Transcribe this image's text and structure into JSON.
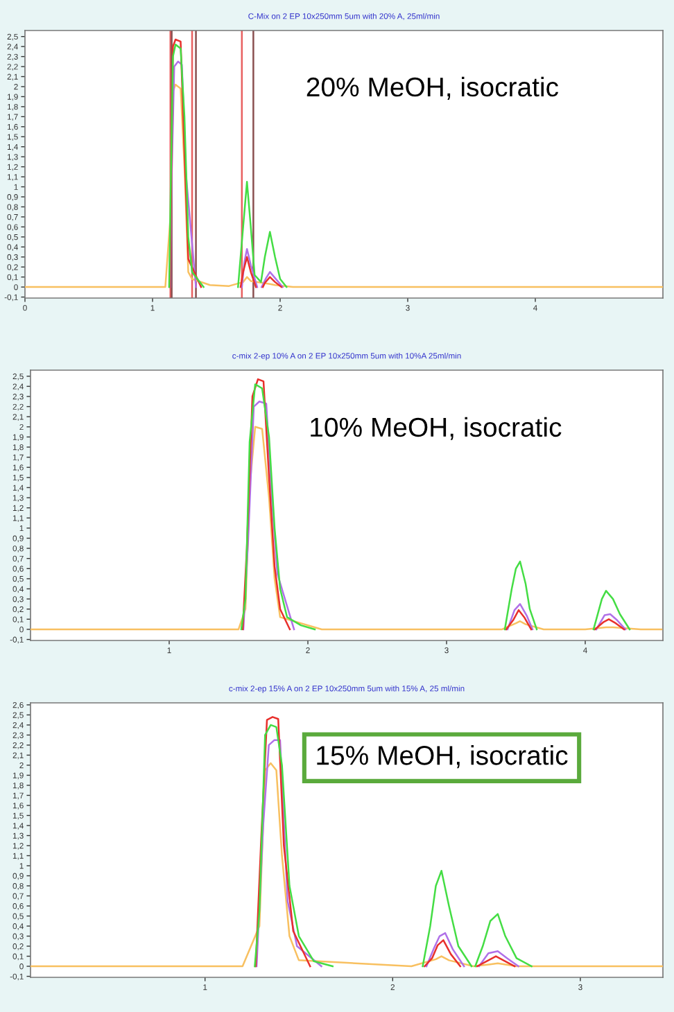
{
  "chart_data": [
    {
      "type": "line",
      "title": "C-Mix on 2 EP 10x250mm 5um with 20% A, 25ml/min",
      "annotations": [
        "20% MeOH, isocratic"
      ],
      "xlim": [
        0,
        5.0
      ],
      "xticks": [
        0,
        1,
        2,
        3,
        4
      ],
      "ylim": [
        -0.11,
        2.56
      ],
      "yticks": [
        {
          "value": -0.1,
          "label": "-0,1"
        },
        0,
        {
          "value": 0.1,
          "label": "0,1"
        },
        {
          "value": 0.2,
          "label": "0,2"
        },
        {
          "value": 0.3,
          "label": "0,3"
        },
        {
          "value": 0.4,
          "label": "0,4"
        },
        {
          "value": 0.5,
          "label": "0,5"
        },
        {
          "value": 0.6,
          "label": "0,6"
        },
        {
          "value": 0.7,
          "label": "0,7"
        },
        {
          "value": 0.8,
          "label": "0,8"
        },
        {
          "value": 0.9,
          "label": "0,9"
        },
        1,
        {
          "value": 1.1,
          "label": "1,1"
        },
        {
          "value": 1.2,
          "label": "1,2"
        },
        {
          "value": 1.3,
          "label": "1,3"
        },
        {
          "value": 1.4,
          "label": "1,4"
        },
        {
          "value": 1.5,
          "label": "1,5"
        },
        {
          "value": 1.6,
          "label": "1,6"
        },
        {
          "value": 1.7,
          "label": "1,7"
        },
        {
          "value": 1.8,
          "label": "1,8"
        },
        {
          "value": 1.9,
          "label": "1,9"
        },
        2,
        {
          "value": 2.1,
          "label": "2,1"
        },
        {
          "value": 2.2,
          "label": "2,2"
        },
        {
          "value": 2.3,
          "label": "2,3"
        },
        {
          "value": 2.4,
          "label": "2,4"
        },
        {
          "value": 2.5,
          "label": "2,5"
        }
      ],
      "grid": false,
      "legend": false,
      "marker": "none",
      "line_style": "solid",
      "ref_lines": [
        {
          "axis": "x",
          "value": 1.14,
          "color": "#e86060"
        },
        {
          "axis": "x",
          "value": 1.15,
          "color": "#8a5050"
        },
        {
          "axis": "x",
          "value": 1.31,
          "color": "#e86060"
        },
        {
          "axis": "x",
          "value": 1.34,
          "color": "#8a5050"
        },
        {
          "axis": "x",
          "value": 1.7,
          "color": "#e86060"
        },
        {
          "axis": "x",
          "value": 1.79,
          "color": "#8a5050"
        }
      ],
      "series": [
        {
          "color": "#f8c060",
          "x": [
            0,
            0.9,
            1.0,
            1.1,
            1.14,
            1.16,
            1.18,
            1.22,
            1.25,
            1.28,
            1.31,
            1.45,
            1.6,
            1.71,
            1.74,
            1.77,
            1.92,
            1.96,
            2.1,
            5.0
          ],
          "values": [
            0,
            0,
            0,
            0,
            0.7,
            1.95,
            2.02,
            1.98,
            1.2,
            0.15,
            0.08,
            0.02,
            0.01,
            0.05,
            0.1,
            0.06,
            0.03,
            0.02,
            0,
            0
          ]
        },
        {
          "color": "#b070e8",
          "x": [
            1.138,
            1.15,
            1.17,
            1.2,
            1.23,
            1.26,
            1.34,
            1.5,
            1.7,
            1.72,
            1.74,
            1.77,
            1.82,
            1.845,
            1.855,
            1.89,
            1.92,
            1.96,
            2.02
          ],
          "values": [
            0,
            1.1,
            2.2,
            2.25,
            2.22,
            1.15,
            0,
            null,
            0,
            0.25,
            0.38,
            0.22,
            0,
            null,
            0,
            0.09,
            0.15,
            0.09,
            0
          ]
        },
        {
          "color": "#e8302c",
          "x": [
            1.135,
            1.145,
            1.16,
            1.18,
            1.22,
            1.25,
            1.28,
            1.38,
            1.5,
            1.69,
            1.71,
            1.74,
            1.77,
            1.81,
            1.835,
            1.865,
            1.88,
            1.92,
            1.96,
            2.01
          ],
          "values": [
            0,
            0.9,
            2.4,
            2.47,
            2.45,
            1.35,
            0.28,
            0,
            null,
            0,
            0.15,
            0.3,
            0.15,
            0,
            null,
            0,
            0.04,
            0.1,
            0.05,
            0
          ]
        },
        {
          "color": "#44dd44",
          "x": [
            1.13,
            1.14,
            1.16,
            1.18,
            1.22,
            1.25,
            1.28,
            1.31,
            1.4,
            1.5,
            1.67,
            1.71,
            1.74,
            1.77,
            1.8,
            1.85,
            1.88,
            1.92,
            1.96,
            2.0,
            2.05
          ],
          "values": [
            0,
            0.8,
            2.3,
            2.42,
            2.38,
            1.7,
            0.5,
            0.15,
            0,
            null,
            0,
            0.6,
            1.05,
            0.6,
            0.12,
            0.05,
            0.3,
            0.55,
            0.3,
            0.08,
            0
          ]
        }
      ]
    },
    {
      "type": "line",
      "title": "c-mix 2-ep 10% A on 2 EP 10x250mm 5um with 10%A 25ml/min",
      "annotations": [
        "10% MeOH, isocratic"
      ],
      "xlim": [
        0,
        4.56
      ],
      "xticks": [
        1,
        2,
        3,
        4
      ],
      "ylim": [
        -0.11,
        2.56
      ],
      "yticks": [
        {
          "value": -0.1,
          "label": "-0,1"
        },
        0,
        {
          "value": 0.1,
          "label": "0,1"
        },
        {
          "value": 0.2,
          "label": "0,2"
        },
        {
          "value": 0.3,
          "label": "0,3"
        },
        {
          "value": 0.4,
          "label": "0,4"
        },
        {
          "value": 0.5,
          "label": "0,5"
        },
        {
          "value": 0.6,
          "label": "0,6"
        },
        {
          "value": 0.7,
          "label": "0,7"
        },
        {
          "value": 0.8,
          "label": "0,8"
        },
        {
          "value": 0.9,
          "label": "0,9"
        },
        1,
        {
          "value": 1.1,
          "label": "1,1"
        },
        {
          "value": 1.2,
          "label": "1,2"
        },
        {
          "value": 1.3,
          "label": "1,3"
        },
        {
          "value": 1.4,
          "label": "1,4"
        },
        {
          "value": 1.5,
          "label": "1,5"
        },
        {
          "value": 1.6,
          "label": "1,6"
        },
        {
          "value": 1.7,
          "label": "1,7"
        },
        {
          "value": 1.8,
          "label": "1,8"
        },
        {
          "value": 1.9,
          "label": "1,9"
        },
        2,
        {
          "value": 2.1,
          "label": "2,1"
        },
        {
          "value": 2.2,
          "label": "2,2"
        },
        {
          "value": 2.3,
          "label": "2,3"
        },
        {
          "value": 2.4,
          "label": "2,4"
        },
        {
          "value": 2.5,
          "label": "2,5"
        }
      ],
      "grid": false,
      "legend": false,
      "marker": "none",
      "line_style": "solid",
      "series": [
        {
          "color": "#f8c060",
          "x": [
            0,
            1.5,
            1.55,
            1.58,
            1.62,
            1.67,
            1.72,
            1.76,
            1.8,
            2.1,
            3.4,
            3.5,
            3.53,
            3.57,
            3.7,
            4.0,
            4.15,
            4.2,
            4.4,
            4.55
          ],
          "values": [
            0,
            0,
            0.2,
            1.4,
            2.0,
            1.98,
            1.3,
            0.5,
            0.12,
            0,
            0,
            0.06,
            0.08,
            0.05,
            0,
            0,
            0.02,
            0.02,
            0,
            0
          ]
        },
        {
          "color": "#b070e8",
          "x": [
            1.535,
            1.57,
            1.61,
            1.65,
            1.7,
            1.74,
            1.78,
            1.9,
            3.0,
            3.44,
            3.49,
            3.53,
            3.58,
            3.62,
            4.0,
            4.08,
            4.14,
            4.18,
            4.23,
            4.29
          ],
          "values": [
            0,
            0.9,
            2.2,
            2.25,
            2.23,
            1.3,
            0.55,
            0,
            null,
            0,
            0.19,
            0.25,
            0.13,
            0,
            null,
            0,
            0.14,
            0.15,
            0.09,
            0
          ]
        },
        {
          "color": "#e8302c",
          "x": [
            1.53,
            1.56,
            1.6,
            1.64,
            1.68,
            1.72,
            1.76,
            1.8,
            1.87,
            3.0,
            3.43,
            3.48,
            3.52,
            3.56,
            3.61,
            4.0,
            4.07,
            4.13,
            4.17,
            4.22,
            4.28
          ],
          "values": [
            0,
            0.8,
            2.3,
            2.47,
            2.45,
            1.5,
            0.62,
            0.2,
            0,
            null,
            0,
            0.09,
            0.19,
            0.12,
            0,
            null,
            0,
            0.07,
            0.1,
            0.06,
            0
          ]
        },
        {
          "color": "#44dd44",
          "x": [
            1.52,
            1.55,
            1.58,
            1.62,
            1.67,
            1.72,
            1.76,
            1.8,
            1.85,
            1.95,
            2.05,
            3.0,
            3.42,
            3.47,
            3.5,
            3.53,
            3.57,
            3.6,
            3.65,
            4.0,
            4.06,
            4.12,
            4.15,
            4.2,
            4.25,
            4.32
          ],
          "values": [
            0,
            0.3,
            1.85,
            2.42,
            2.38,
            1.9,
            1.0,
            0.4,
            0.12,
            0.04,
            0,
            null,
            0,
            0.4,
            0.6,
            0.67,
            0.45,
            0.2,
            0,
            null,
            0,
            0.3,
            0.38,
            0.3,
            0.15,
            0
          ]
        }
      ]
    },
    {
      "type": "line",
      "title": "c-mix 2-ep 15% A on 2 EP 10x250mm 5um with 15% A, 25 ml/min",
      "annotations": [
        "15% MeOH, isocratic"
      ],
      "xlim": [
        0.07,
        3.44
      ],
      "xticks": [
        1,
        2,
        3
      ],
      "ylim": [
        -0.11,
        2.62
      ],
      "yticks": [
        {
          "value": -0.1,
          "label": "-0,1"
        },
        0,
        {
          "value": 0.1,
          "label": "0,1"
        },
        {
          "value": 0.2,
          "label": "0,2"
        },
        {
          "value": 0.3,
          "label": "0,3"
        },
        {
          "value": 0.4,
          "label": "0,4"
        },
        {
          "value": 0.5,
          "label": "0,5"
        },
        {
          "value": 0.6,
          "label": "0,6"
        },
        {
          "value": 0.7,
          "label": "0,7"
        },
        {
          "value": 0.8,
          "label": "0,8"
        },
        {
          "value": 0.9,
          "label": "0,9"
        },
        1,
        {
          "value": 1.1,
          "label": "1,1"
        },
        {
          "value": 1.2,
          "label": "1,2"
        },
        {
          "value": 1.3,
          "label": "1,3"
        },
        {
          "value": 1.4,
          "label": "1,4"
        },
        {
          "value": 1.5,
          "label": "1,5"
        },
        {
          "value": 1.6,
          "label": "1,6"
        },
        {
          "value": 1.7,
          "label": "1,7"
        },
        {
          "value": 1.8,
          "label": "1,8"
        },
        {
          "value": 1.9,
          "label": "1,9"
        },
        2,
        {
          "value": 2.1,
          "label": "2,1"
        },
        {
          "value": 2.2,
          "label": "2,2"
        },
        {
          "value": 2.3,
          "label": "2,3"
        },
        {
          "value": 2.4,
          "label": "2,4"
        },
        {
          "value": 2.5,
          "label": "2,5"
        },
        {
          "value": 2.6,
          "label": "2,6"
        }
      ],
      "grid": false,
      "legend": false,
      "marker": "none",
      "line_style": "solid",
      "series": [
        {
          "color": "#f8c060",
          "x": [
            0.07,
            1.2,
            1.29,
            1.32,
            1.35,
            1.38,
            1.41,
            1.45,
            1.5,
            2.1,
            2.23,
            2.26,
            2.3,
            2.43,
            2.52,
            2.56,
            2.66,
            3.44
          ],
          "values": [
            0,
            0,
            0.4,
            1.95,
            2.02,
            1.95,
            1.1,
            0.3,
            0.06,
            0,
            0.07,
            0.1,
            0.06,
            0,
            0.02,
            0.03,
            0,
            0
          ]
        },
        {
          "color": "#b070e8",
          "x": [
            1.275,
            1.31,
            1.34,
            1.37,
            1.4,
            1.44,
            1.49,
            1.62,
            1.9,
            2.18,
            2.22,
            2.25,
            2.28,
            2.32,
            2.38,
            2.41,
            2.46,
            2.51,
            2.56,
            2.61,
            2.67
          ],
          "values": [
            0,
            1.4,
            2.2,
            2.25,
            2.25,
            0.65,
            0.2,
            0,
            null,
            0,
            0.18,
            0.3,
            0.33,
            0.17,
            0,
            null,
            0,
            0.13,
            0.15,
            0.08,
            0
          ]
        },
        {
          "color": "#e8302c",
          "x": [
            1.27,
            1.3,
            1.33,
            1.36,
            1.39,
            1.42,
            1.47,
            1.56,
            1.9,
            2.17,
            2.21,
            2.24,
            2.27,
            2.31,
            2.36,
            2.4,
            2.45,
            2.5,
            2.55,
            2.6,
            2.65
          ],
          "values": [
            0,
            1.3,
            2.45,
            2.48,
            2.46,
            1.2,
            0.35,
            0,
            null,
            0,
            0.08,
            0.21,
            0.26,
            0.12,
            0,
            null,
            0,
            0.05,
            0.1,
            0.05,
            0
          ]
        },
        {
          "color": "#44dd44",
          "x": [
            1.265,
            1.29,
            1.32,
            1.35,
            1.38,
            1.41,
            1.45,
            1.5,
            1.58,
            1.68,
            1.9,
            2.16,
            2.2,
            2.23,
            2.26,
            2.3,
            2.35,
            2.42,
            2.43,
            2.44,
            2.48,
            2.52,
            2.56,
            2.6,
            2.66,
            2.74
          ],
          "values": [
            0,
            0.55,
            2.3,
            2.4,
            2.38,
            2.0,
            0.8,
            0.3,
            0.05,
            0,
            null,
            0,
            0.4,
            0.8,
            0.95,
            0.6,
            0.2,
            0,
            null,
            0,
            0.2,
            0.45,
            0.52,
            0.3,
            0.08,
            0
          ]
        }
      ]
    }
  ]
}
